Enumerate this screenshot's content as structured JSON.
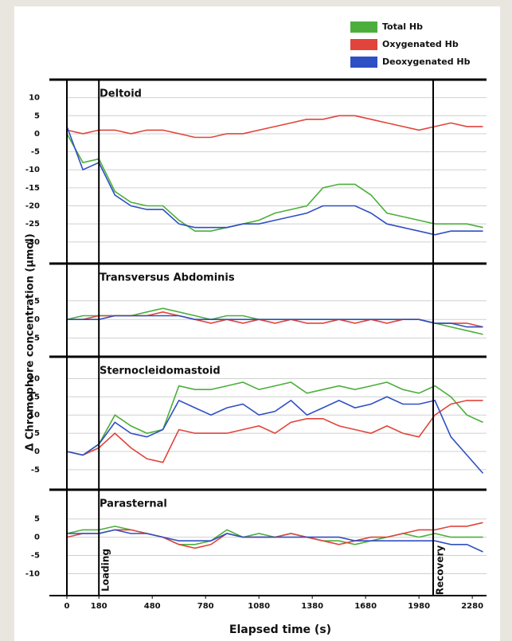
{
  "legend": [
    {
      "name": "Total Hb",
      "color": "#4caf3c"
    },
    {
      "name": "Oxygenated Hb",
      "color": "#e0443a"
    },
    {
      "name": "Deoxygenated Hb",
      "color": "#2f4fc4"
    }
  ],
  "xlabel": "Elapsed time (s)",
  "ylabel": "Δ Chromophore concentration (μmol)",
  "xlim": [
    0,
    2360
  ],
  "xticks": [
    0,
    180,
    480,
    780,
    1080,
    1380,
    1680,
    1980,
    2280
  ],
  "events": [
    {
      "x": 180,
      "label": "Loading"
    },
    {
      "x": 2060,
      "label": "Recovery"
    }
  ],
  "chart_data": [
    {
      "type": "line",
      "title": "Deltoid",
      "x": [
        0,
        90,
        180,
        270,
        360,
        450,
        540,
        630,
        720,
        810,
        900,
        990,
        1080,
        1170,
        1260,
        1350,
        1440,
        1530,
        1620,
        1710,
        1800,
        1890,
        1980,
        2070,
        2160,
        2250,
        2340
      ],
      "ylim": [
        -36,
        15
      ],
      "yticks": [
        10,
        5,
        0,
        -5,
        -10,
        -15,
        -20,
        -25,
        -30
      ],
      "grid": true,
      "series": [
        {
          "values": [
            0,
            -8,
            -7,
            -16,
            -19,
            -20,
            -20,
            -24,
            -27,
            -27,
            -26,
            -25,
            -24,
            -22,
            -21,
            -20,
            -15,
            -14,
            -14,
            -17,
            -22,
            -23,
            -24,
            -25,
            -25,
            -25,
            -26
          ]
        },
        {
          "values": [
            1,
            0,
            1,
            1,
            0,
            1,
            1,
            0,
            -1,
            -1,
            0,
            0,
            1,
            2,
            3,
            4,
            4,
            5,
            5,
            4,
            3,
            2,
            1,
            2,
            3,
            2,
            2
          ]
        },
        {
          "values": [
            2,
            -10,
            -8,
            -17,
            -20,
            -21,
            -21,
            -25,
            -26,
            -26,
            -26,
            -25,
            -25,
            -24,
            -23,
            -22,
            -20,
            -20,
            -20,
            -22,
            -25,
            -26,
            -27,
            -28,
            -27,
            -27,
            -27
          ]
        }
      ]
    },
    {
      "type": "line",
      "title": "Transversus Abdominis",
      "x": [
        0,
        90,
        180,
        270,
        360,
        450,
        540,
        630,
        720,
        810,
        900,
        990,
        1080,
        1170,
        1260,
        1350,
        1440,
        1530,
        1620,
        1710,
        1800,
        1890,
        1980,
        2070,
        2160,
        2250,
        2340
      ],
      "ylim": [
        -10,
        15
      ],
      "yticks": [
        5,
        0,
        -5
      ],
      "grid": true,
      "series": [
        {
          "values": [
            0,
            1,
            1,
            1,
            1,
            2,
            3,
            2,
            1,
            0,
            1,
            1,
            0,
            0,
            0,
            0,
            0,
            0,
            0,
            0,
            0,
            0,
            0,
            -1,
            -2,
            -3,
            -4
          ]
        },
        {
          "values": [
            0,
            0,
            1,
            1,
            1,
            1,
            2,
            1,
            0,
            -1,
            0,
            -1,
            0,
            -1,
            0,
            -1,
            -1,
            0,
            -1,
            0,
            -1,
            0,
            0,
            -1,
            -1,
            -1,
            -2
          ]
        },
        {
          "values": [
            0,
            0,
            0,
            1,
            1,
            1,
            1,
            1,
            0,
            0,
            0,
            0,
            0,
            0,
            0,
            0,
            0,
            0,
            0,
            0,
            0,
            0,
            0,
            -1,
            -1,
            -2,
            -2
          ]
        }
      ]
    },
    {
      "type": "line",
      "title": "Sternocleidomastoid",
      "x": [
        0,
        90,
        180,
        270,
        360,
        450,
        540,
        630,
        720,
        810,
        900,
        990,
        1080,
        1170,
        1260,
        1350,
        1440,
        1530,
        1620,
        1710,
        1800,
        1890,
        1980,
        2070,
        2160,
        2250,
        2340
      ],
      "ylim": [
        -10.5,
        26
      ],
      "yticks": [
        20,
        15,
        10,
        5,
        0,
        -5
      ],
      "grid": true,
      "series": [
        {
          "values": [
            0,
            -1,
            2,
            10,
            7,
            5,
            6,
            18,
            17,
            17,
            18,
            19,
            17,
            18,
            19,
            16,
            17,
            18,
            17,
            18,
            19,
            17,
            16,
            18,
            15,
            10,
            8
          ]
        },
        {
          "values": [
            0,
            -1,
            1,
            5,
            1,
            -2,
            -3,
            6,
            5,
            5,
            5,
            6,
            7,
            5,
            8,
            9,
            9,
            7,
            6,
            5,
            7,
            5,
            4,
            10,
            13,
            14,
            14
          ]
        },
        {
          "values": [
            0,
            -1,
            2,
            8,
            5,
            4,
            6,
            14,
            12,
            10,
            12,
            13,
            10,
            11,
            14,
            10,
            12,
            14,
            12,
            13,
            15,
            13,
            13,
            14,
            4,
            -1,
            -6
          ]
        }
      ]
    },
    {
      "type": "line",
      "title": "Parasternal",
      "x": [
        0,
        90,
        180,
        270,
        360,
        450,
        540,
        630,
        720,
        810,
        900,
        990,
        1080,
        1170,
        1260,
        1350,
        1440,
        1530,
        1620,
        1710,
        1800,
        1890,
        1980,
        2070,
        2160,
        2250,
        2340
      ],
      "ylim": [
        -16,
        13
      ],
      "yticks": [
        5,
        0,
        -5,
        -10
      ],
      "grid": true,
      "series": [
        {
          "values": [
            1,
            2,
            2,
            3,
            2,
            1,
            0,
            -2,
            -2,
            -1,
            2,
            0,
            1,
            0,
            1,
            0,
            -1,
            -1,
            -2,
            -1,
            0,
            1,
            0,
            1,
            0,
            0,
            0
          ]
        },
        {
          "values": [
            0,
            1,
            1,
            2,
            2,
            1,
            0,
            -2,
            -3,
            -2,
            1,
            0,
            0,
            0,
            1,
            0,
            -1,
            -2,
            -1,
            0,
            0,
            1,
            2,
            2,
            3,
            3,
            4
          ]
        },
        {
          "values": [
            1,
            1,
            1,
            2,
            1,
            1,
            0,
            -1,
            -1,
            -1,
            1,
            0,
            0,
            0,
            0,
            0,
            0,
            0,
            -1,
            -1,
            -1,
            -1,
            -1,
            -1,
            -2,
            -2,
            -4
          ]
        }
      ]
    }
  ]
}
